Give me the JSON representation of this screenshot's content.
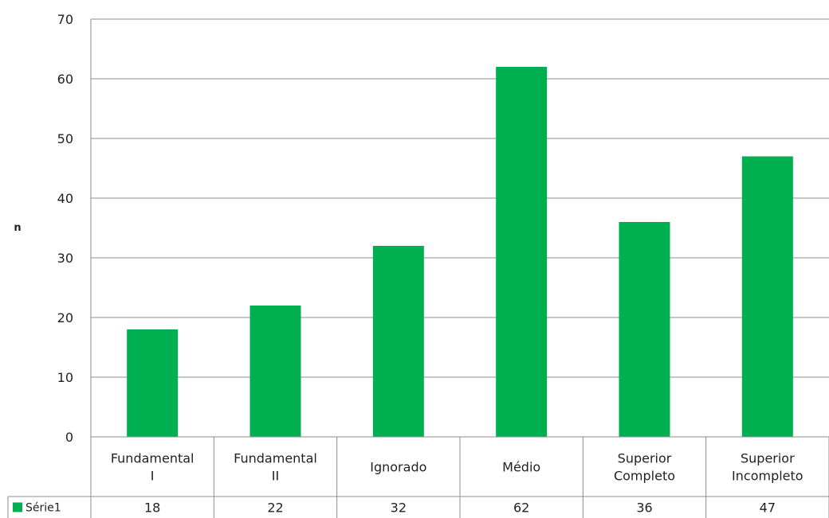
{
  "chart_data": {
    "type": "bar",
    "title": "",
    "xlabel": "",
    "ylabel": "n",
    "ylim": [
      0,
      70
    ],
    "yticks": [
      0,
      10,
      20,
      30,
      40,
      50,
      60,
      70
    ],
    "grid": true,
    "legend_placement": "data-table",
    "categories": [
      [
        "Fundamental",
        "I"
      ],
      [
        "Fundamental",
        "II"
      ],
      [
        "Ignorado"
      ],
      [
        "Médio"
      ],
      [
        "Superior",
        "Completo"
      ],
      [
        "Superior",
        "Incompleto"
      ]
    ],
    "series": [
      {
        "name": "Série1",
        "values": [
          18,
          22,
          32,
          62,
          36,
          47
        ],
        "color": "#00b050"
      }
    ]
  }
}
